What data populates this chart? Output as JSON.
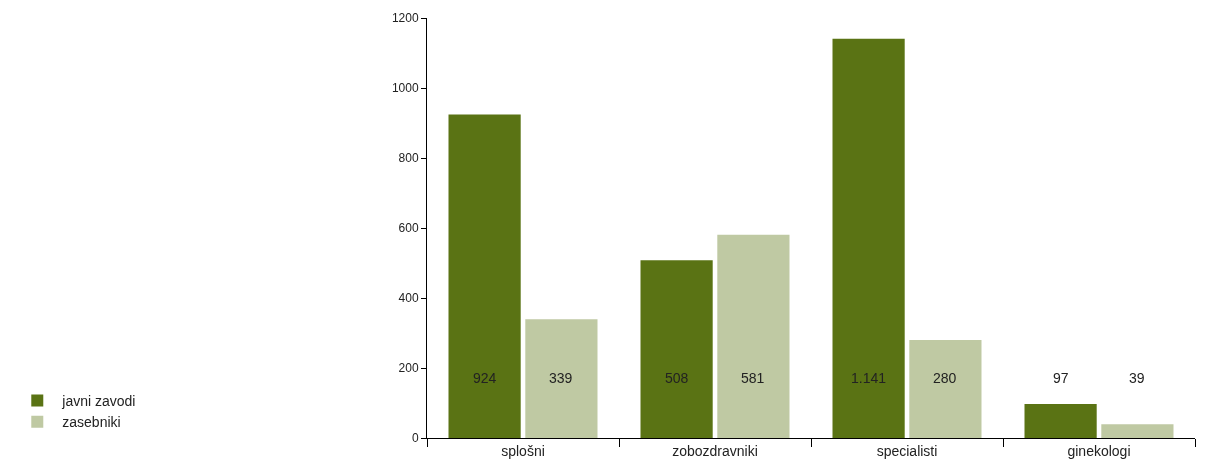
{
  "chart_data": {
    "type": "bar",
    "categories": [
      "splošni",
      "zobozdravniki",
      "specialisti",
      "ginekologi"
    ],
    "series": [
      {
        "name": "javni zavodi",
        "color": "#5a7314",
        "values": [
          924,
          508,
          1141,
          97
        ],
        "value_labels": [
          "924",
          "508",
          "1.141",
          "97"
        ]
      },
      {
        "name": "zasebniki",
        "color": "#bfc9a3",
        "values": [
          339,
          581,
          280,
          39
        ],
        "value_labels": [
          "339",
          "581",
          "280",
          "39"
        ]
      }
    ],
    "ylim": [
      0,
      1200
    ],
    "yticks": [
      0,
      200,
      400,
      600,
      800,
      1000,
      1200
    ],
    "grid": false,
    "legend": "bottom left"
  }
}
